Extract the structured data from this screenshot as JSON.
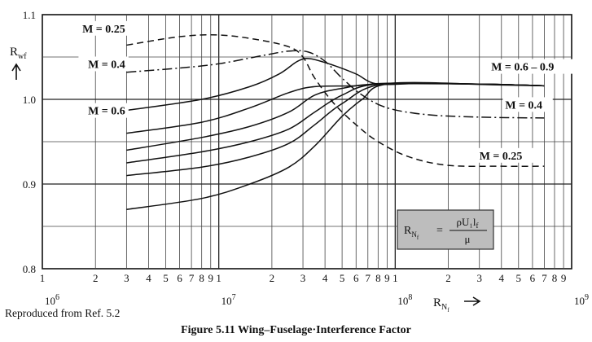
{
  "caption": "Figure 5.11 Wing–Fuselage·Interference Factor",
  "source_note": "Reproduced from Ref. 5.2",
  "chart_data": {
    "type": "line",
    "title": "",
    "xlabel": "R_Nf",
    "ylabel": "R_wf",
    "xscale": "log",
    "xlim": [
      1000000,
      1000000000
    ],
    "ylim": [
      0.8,
      1.1
    ],
    "grid": true,
    "xlabel_parts": {
      "main": "R",
      "sub": "N",
      "subsub": "f"
    },
    "ylabel_parts": {
      "main": "R",
      "sub": "wf"
    },
    "x_decade_labels": [
      {
        "base": "10",
        "exp": "6",
        "x": 1000000
      },
      {
        "base": "10",
        "exp": "7",
        "x": 10000000
      },
      {
        "base": "10",
        "exp": "8",
        "x": 100000000
      },
      {
        "base": "10",
        "exp": "9",
        "x": 1000000000
      }
    ],
    "x_minor_labels": [
      {
        "x": 1000000,
        "text": "1"
      },
      {
        "x": 2000000,
        "text": "2"
      },
      {
        "x": 3000000,
        "text": "3"
      },
      {
        "x": 4000000,
        "text": "4"
      },
      {
        "x": 5000000,
        "text": "5"
      },
      {
        "x": 6000000,
        "text": "6"
      },
      {
        "x": 7000000,
        "text": "7"
      },
      {
        "x": 8000000,
        "text": "8"
      },
      {
        "x": 9000000,
        "text": "9"
      },
      {
        "x": 10000000,
        "text": "1"
      },
      {
        "x": 20000000,
        "text": "2"
      },
      {
        "x": 30000000,
        "text": "3"
      },
      {
        "x": 40000000,
        "text": "4"
      },
      {
        "x": 50000000,
        "text": "5"
      },
      {
        "x": 60000000,
        "text": "6"
      },
      {
        "x": 70000000,
        "text": "7"
      },
      {
        "x": 80000000,
        "text": "8"
      },
      {
        "x": 90000000,
        "text": "9"
      },
      {
        "x": 100000000,
        "text": "1"
      },
      {
        "x": 200000000,
        "text": "2"
      },
      {
        "x": 300000000,
        "text": "3"
      },
      {
        "x": 400000000,
        "text": "4"
      },
      {
        "x": 500000000,
        "text": "5"
      },
      {
        "x": 600000000,
        "text": "6"
      },
      {
        "x": 700000000,
        "text": "7"
      },
      {
        "x": 800000000,
        "text": "8"
      },
      {
        "x": 900000000,
        "text": "9"
      }
    ],
    "y_ticks": [
      {
        "y": 0.8,
        "text": "0.8"
      },
      {
        "y": 0.9,
        "text": "0.9"
      },
      {
        "y": 1.0,
        "text": "1.0"
      },
      {
        "y": 1.1,
        "text": "1.1"
      }
    ],
    "y_minor_gridlines": [
      0.85,
      0.95,
      1.05
    ],
    "series": [
      {
        "name": "M = 0.25",
        "dash": "8,5",
        "points": [
          [
            3000000,
            1.064
          ],
          [
            6000000,
            1.074
          ],
          [
            10000000,
            1.076
          ],
          [
            16000000,
            1.071
          ],
          [
            25000000,
            1.062
          ],
          [
            30000000,
            1.05
          ],
          [
            35000000,
            1.025
          ],
          [
            45000000,
            0.995
          ],
          [
            60000000,
            0.97
          ],
          [
            80000000,
            0.95
          ],
          [
            120000000,
            0.932
          ],
          [
            200000000,
            0.922
          ],
          [
            400000000,
            0.921
          ],
          [
            700000000,
            0.921
          ]
        ]
      },
      {
        "name": "M = 0.4",
        "dash": "12,4,2,4",
        "points": [
          [
            3000000,
            1.032
          ],
          [
            6000000,
            1.037
          ],
          [
            10000000,
            1.042
          ],
          [
            18000000,
            1.052
          ],
          [
            25000000,
            1.057
          ],
          [
            32000000,
            1.056
          ],
          [
            40000000,
            1.045
          ],
          [
            50000000,
            1.025
          ],
          [
            65000000,
            1.005
          ],
          [
            90000000,
            0.99
          ],
          [
            150000000,
            0.982
          ],
          [
            300000000,
            0.979
          ],
          [
            700000000,
            0.978
          ]
        ]
      },
      {
        "name": "M = 0.6",
        "dash": "",
        "points": [
          [
            3000000,
            0.987
          ],
          [
            8000000,
            1.0
          ],
          [
            15000000,
            1.015
          ],
          [
            22000000,
            1.03
          ],
          [
            28000000,
            1.045
          ],
          [
            33000000,
            1.048
          ],
          [
            45000000,
            1.04
          ],
          [
            60000000,
            1.03
          ],
          [
            80000000,
            1.018
          ],
          [
            150000000,
            1.019
          ],
          [
            400000000,
            1.017
          ],
          [
            700000000,
            1.016
          ]
        ]
      },
      {
        "name": "",
        "dash": "",
        "points": [
          [
            3000000,
            0.96
          ],
          [
            8000000,
            0.973
          ],
          [
            15000000,
            0.99
          ],
          [
            25000000,
            1.008
          ],
          [
            35000000,
            1.015
          ],
          [
            60000000,
            1.016
          ],
          [
            90000000,
            1.019
          ],
          [
            300000000,
            1.018
          ],
          [
            700000000,
            1.016
          ]
        ]
      },
      {
        "name": "",
        "dash": "",
        "points": [
          [
            3000000,
            0.94
          ],
          [
            8000000,
            0.955
          ],
          [
            15000000,
            0.968
          ],
          [
            25000000,
            0.985
          ],
          [
            35000000,
            1.005
          ],
          [
            50000000,
            1.013
          ],
          [
            80000000,
            1.018
          ],
          [
            300000000,
            1.018
          ],
          [
            700000000,
            1.016
          ]
        ]
      },
      {
        "name": "",
        "dash": "",
        "points": [
          [
            3000000,
            0.925
          ],
          [
            8000000,
            0.938
          ],
          [
            15000000,
            0.95
          ],
          [
            25000000,
            0.965
          ],
          [
            35000000,
            0.985
          ],
          [
            50000000,
            1.005
          ],
          [
            80000000,
            1.018
          ],
          [
            300000000,
            1.018
          ],
          [
            700000000,
            1.016
          ]
        ]
      },
      {
        "name": "",
        "dash": "",
        "points": [
          [
            3000000,
            0.91
          ],
          [
            8000000,
            0.92
          ],
          [
            15000000,
            0.932
          ],
          [
            25000000,
            0.948
          ],
          [
            35000000,
            0.97
          ],
          [
            50000000,
            0.995
          ],
          [
            85000000,
            1.018
          ],
          [
            300000000,
            1.018
          ],
          [
            700000000,
            1.016
          ]
        ]
      },
      {
        "name": "",
        "dash": "",
        "points": [
          [
            3000000,
            0.87
          ],
          [
            8000000,
            0.883
          ],
          [
            15000000,
            0.9
          ],
          [
            25000000,
            0.92
          ],
          [
            35000000,
            0.945
          ],
          [
            50000000,
            0.98
          ],
          [
            65000000,
            1.0
          ],
          [
            90000000,
            1.018
          ],
          [
            300000000,
            1.018
          ],
          [
            700000000,
            1.016
          ]
        ]
      }
    ],
    "annotations": [
      {
        "text": "M = 0.25",
        "anchor": "end",
        "x": 2950000,
        "y": 1.08
      },
      {
        "text": "M = 0.4",
        "anchor": "end",
        "x": 2950000,
        "y": 1.038
      },
      {
        "text": "M = 0.6",
        "anchor": "end",
        "x": 2950000,
        "y": 0.983
      },
      {
        "text": "M = 0.6 – 0.9",
        "anchor": "start",
        "x": 350000000,
        "y": 1.035
      },
      {
        "text": "M = 0.4",
        "anchor": "start",
        "x": 420000000,
        "y": 0.99
      },
      {
        "text": "M = 0.25",
        "anchor": "start",
        "x": 300000000,
        "y": 0.93
      }
    ],
    "formula": {
      "lhs_main": "R",
      "lhs_sub": "N",
      "lhs_subsub": "f",
      "equals": "=",
      "numerator": "ρU₁l",
      "numerator_sub": "f",
      "denominator": "μ"
    }
  }
}
